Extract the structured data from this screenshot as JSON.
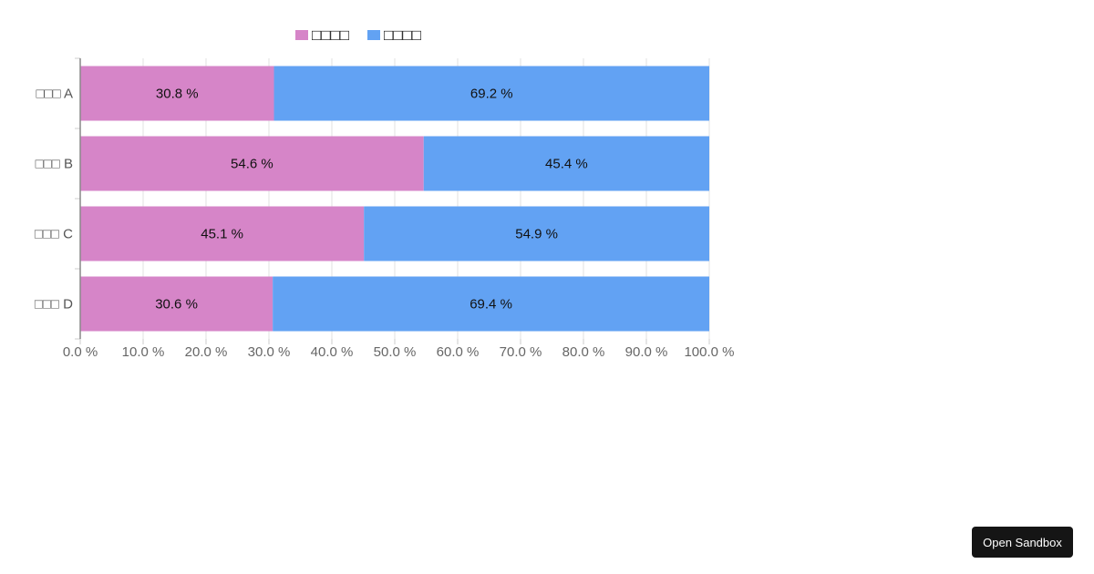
{
  "chart_data": {
    "type": "bar",
    "orientation": "horizontal",
    "stacked": true,
    "categories": [
      "□□□ A",
      "□□□ B",
      "□□□ C",
      "□□□ D"
    ],
    "series": [
      {
        "name": "□□□□",
        "color": "#d685c8",
        "values": [
          30.8,
          54.6,
          45.1,
          30.6
        ],
        "labels": [
          "30.8 %",
          "54.6 %",
          "45.1 %",
          "30.6 %"
        ]
      },
      {
        "name": "□□□□",
        "color": "#62a2f3",
        "values": [
          69.2,
          45.4,
          54.9,
          69.4
        ],
        "labels": [
          "69.2 %",
          "45.4 %",
          "54.9 %",
          "69.4 %"
        ]
      }
    ],
    "xlim": [
      0,
      100
    ],
    "x_ticks": [
      0,
      10,
      20,
      30,
      40,
      50,
      60,
      70,
      80,
      90,
      100
    ],
    "x_tick_labels": [
      "0.0 %",
      "10.0 %",
      "20.0 %",
      "30.0 %",
      "40.0 %",
      "50.0 %",
      "60.0 %",
      "70.0 %",
      "80.0 %",
      "90.0 %",
      "100.0 %"
    ],
    "grid": true,
    "legend_position": "top"
  },
  "sandbox_button": {
    "label": "Open Sandbox"
  }
}
